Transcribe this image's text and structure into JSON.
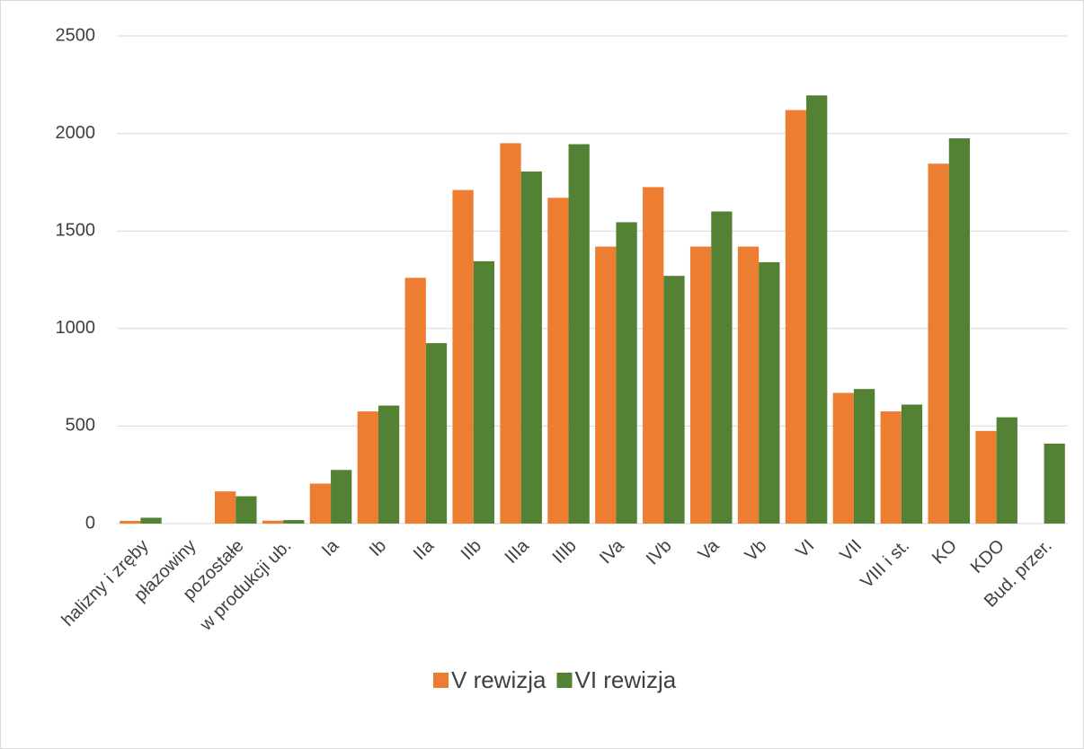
{
  "chart_data": {
    "type": "bar",
    "categories": [
      "halizny i zręby",
      "płazowiny",
      "pozostałe",
      "w produkcji ub.",
      "Ia",
      "Ib",
      "IIa",
      "IIb",
      "IIIa",
      "IIIb",
      "IVa",
      "IVb",
      "Va",
      "Vb",
      "VI",
      "VII",
      "VIII i st.",
      "KO",
      "KDO",
      "Bud. przer."
    ],
    "series": [
      {
        "name": "V rewizja",
        "color": "#ed7d31",
        "values": [
          14,
          0,
          165,
          15,
          205,
          575,
          1260,
          1710,
          1950,
          1670,
          1420,
          1725,
          1420,
          1420,
          2120,
          670,
          575,
          1845,
          475,
          0
        ]
      },
      {
        "name": "VI rewizja",
        "color": "#548235",
        "values": [
          30,
          0,
          140,
          18,
          275,
          605,
          925,
          1345,
          1805,
          1945,
          1545,
          1270,
          1600,
          1340,
          2195,
          690,
          610,
          1975,
          545,
          410
        ]
      }
    ],
    "ylim": [
      0,
      2500
    ],
    "yticks": [
      0,
      500,
      1000,
      1500,
      2000,
      2500
    ],
    "grid": true,
    "legend": "bottom"
  }
}
